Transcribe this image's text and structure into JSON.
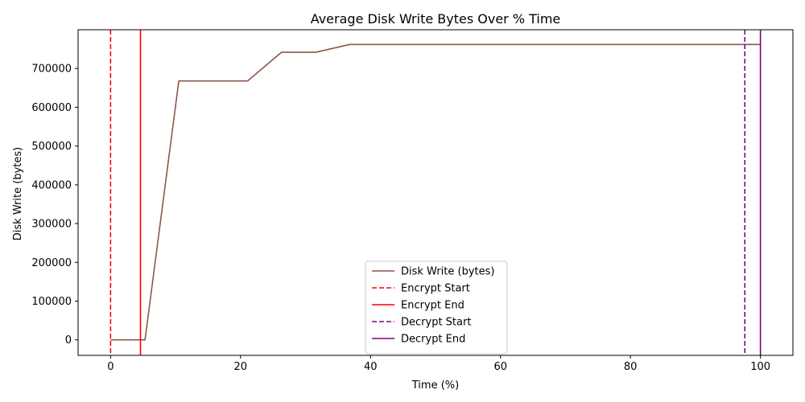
{
  "chart_data": {
    "type": "line",
    "title": "Average Disk Write Bytes Over % Time",
    "xlabel": "Time (%)",
    "ylabel": "Disk Write (bytes)",
    "xlim": [
      -5,
      105
    ],
    "ylim": [
      -40000,
      800000
    ],
    "x_ticks": [
      0,
      20,
      40,
      60,
      80,
      100
    ],
    "x_tick_labels": [
      "0",
      "20",
      "40",
      "60",
      "80",
      "100"
    ],
    "y_ticks": [
      0,
      100000,
      200000,
      300000,
      400000,
      500000,
      600000,
      700000
    ],
    "y_tick_labels": [
      "0",
      "100000",
      "200000",
      "300000",
      "400000",
      "500000",
      "600000",
      "700000"
    ],
    "grid": false,
    "legend_position": "lower-center",
    "series": [
      {
        "name": "Disk Write (bytes)",
        "color": "#8c564b",
        "x": [
          0,
          5.3,
          10.5,
          15.8,
          21.1,
          26.3,
          31.6,
          36.8,
          42.1,
          47.4,
          52.6,
          57.9,
          63.2,
          68.4,
          73.7,
          78.9,
          84.2,
          89.5,
          94.7,
          100
        ],
        "y": [
          0,
          0,
          668000,
          668000,
          668000,
          742000,
          742000,
          762000,
          762000,
          762000,
          762000,
          762000,
          762000,
          762000,
          762000,
          762000,
          762000,
          762000,
          762000,
          762000
        ]
      }
    ],
    "vlines": [
      {
        "name": "Encrypt Start",
        "x": 0,
        "color": "#ff0000",
        "style": "dashed"
      },
      {
        "name": "Encrypt End",
        "x": 4.6,
        "color": "#ff0000",
        "style": "solid"
      },
      {
        "name": "Decrypt Start",
        "x": 97.6,
        "color": "#800080",
        "style": "dashed"
      },
      {
        "name": "Decrypt End",
        "x": 100,
        "color": "#800080",
        "style": "solid"
      }
    ]
  }
}
